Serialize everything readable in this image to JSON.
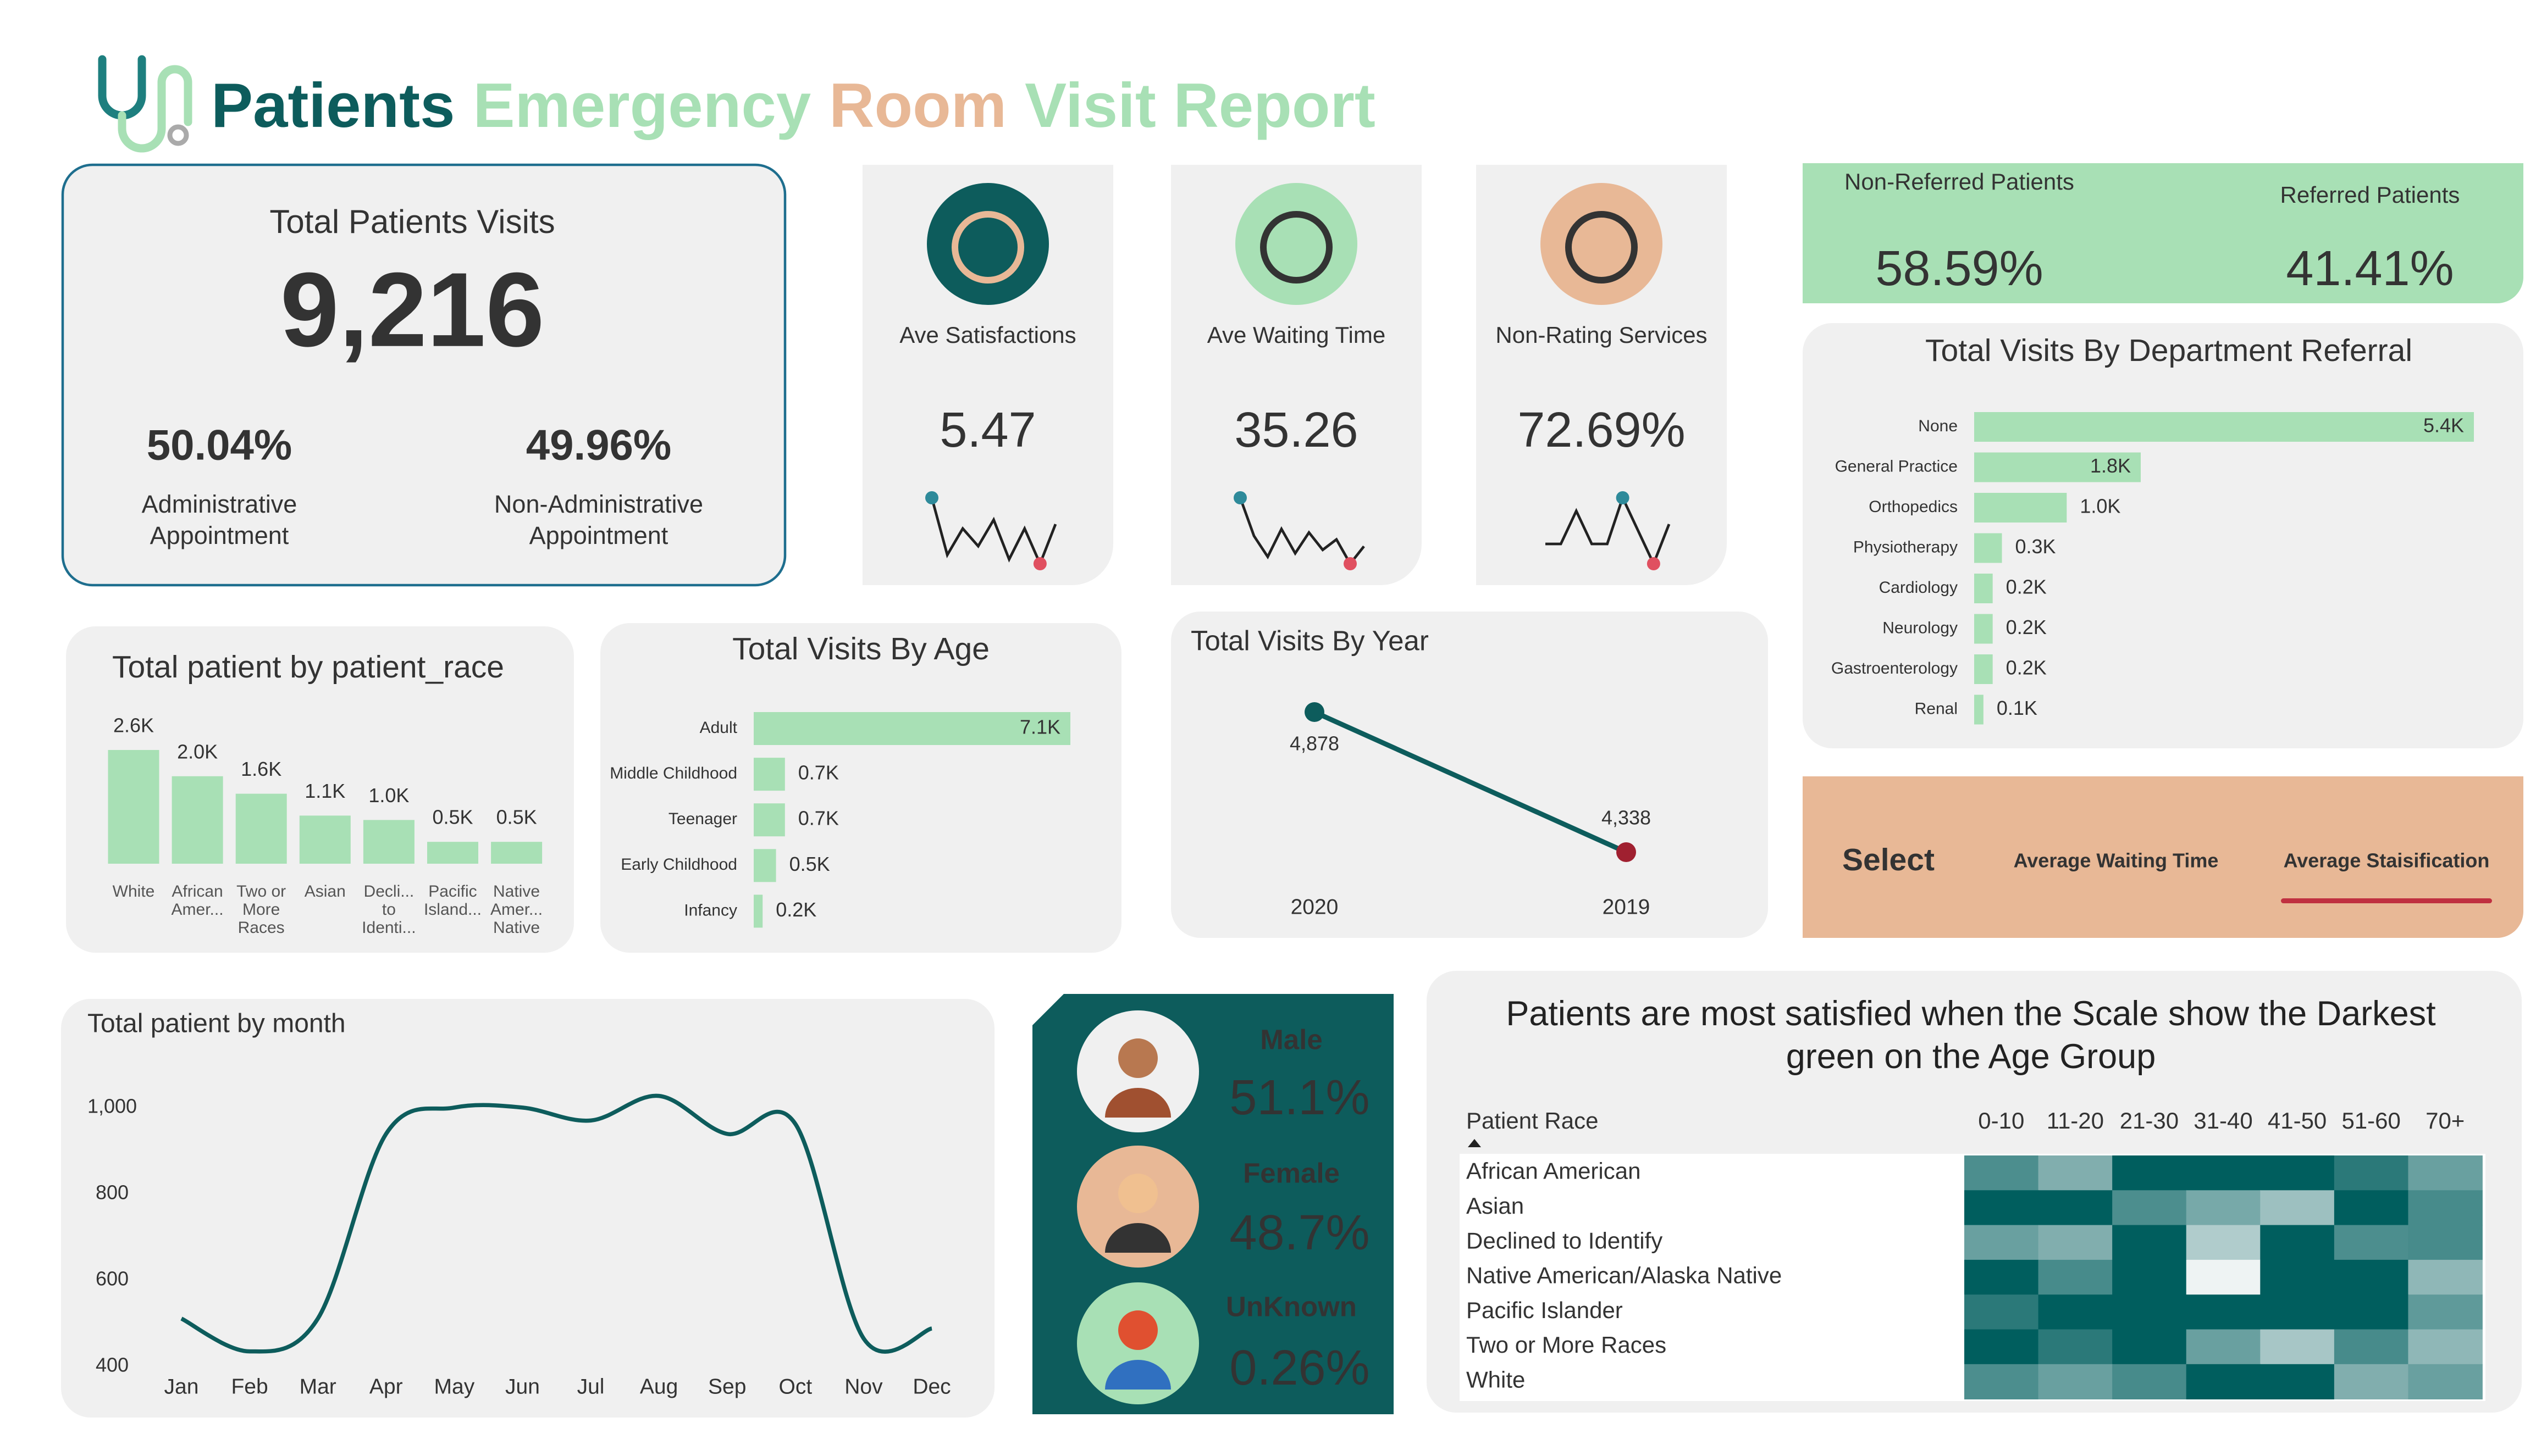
{
  "header": {
    "title_parts": [
      "Patients",
      "Emergency",
      "Room",
      "Visit Report"
    ]
  },
  "kpis": {
    "total_visits": {
      "name": "Total Patients Visits",
      "value": "9,216"
    },
    "appointments": [
      {
        "name": "Administrative Appointment",
        "value": "50.04%",
        "color": "#a8e0b5"
      },
      {
        "name": "Non-Administrative Appointment",
        "value": "49.96%",
        "color": "#e8b896"
      }
    ],
    "cards": [
      {
        "name": "Ave Satisfactions",
        "value": "5.47",
        "icon_color": "#0d5c5c",
        "trend": [
          6.0,
          4.7,
          5.3,
          4.9,
          5.5,
          4.6,
          5.3,
          4.5,
          5.4
        ]
      },
      {
        "name": "Ave Waiting Time",
        "value": "35.26",
        "icon_color": "#a8e0b5",
        "trend": [
          36.5,
          35.4,
          34.8,
          35.6,
          34.9,
          35.5,
          35.0,
          35.3,
          34.6,
          35.1
        ]
      },
      {
        "name": "Non-Rating Services",
        "value": "72.69%",
        "icon_color": "#e8b896",
        "trend": [
          72.0,
          72.0,
          74.5,
          72.0,
          72.0,
          75.5,
          73.0,
          70.5,
          73.5
        ]
      }
    ],
    "referral": [
      {
        "name": "Non-Referred Patients",
        "value": "58.59%"
      },
      {
        "name": "Referred Patients",
        "value": "41.41%"
      }
    ],
    "gender": [
      {
        "name": "Male",
        "value": "51.1%"
      },
      {
        "name": "Female",
        "value": "48.7%"
      },
      {
        "name": "UnKnown",
        "value": "0.26%"
      }
    ]
  },
  "select": {
    "name": "Select",
    "options": [
      "Average Waiting Time",
      "Average Staisification"
    ]
  },
  "chart_data": [
    {
      "type": "bar",
      "title": "Total patient by patient_race",
      "color": "#a8e0b5",
      "categories": [
        "White",
        "African Amer...",
        "Two or More Races",
        "Asian",
        "Decli... to Identi...",
        "Pacific Island...",
        "Native Amer... Native"
      ],
      "values": [
        2600,
        2000,
        1600,
        1100,
        1000,
        500,
        500
      ],
      "value_labels": [
        "2.6K",
        "2.0K",
        "1.6K",
        "1.1K",
        "1.0K",
        "0.5K",
        "0.5K"
      ]
    },
    {
      "type": "hbar",
      "title": "Total Visits By Age",
      "color": "#a8e0b5",
      "categories": [
        "Adult",
        "Middle Childhood",
        "Teenager",
        "Early Childhood",
        "Infancy"
      ],
      "values": [
        7100,
        700,
        700,
        500,
        200
      ],
      "value_labels": [
        "7.1K",
        "0.7K",
        "0.7K",
        "0.5K",
        "0.2K"
      ]
    },
    {
      "type": "line",
      "title": "Total Visits By Year",
      "color": "#0d5c5c",
      "categories": [
        "2020",
        "2019"
      ],
      "values": [
        4878,
        4338
      ],
      "value_labels": [
        "4,878",
        "4,338"
      ]
    },
    {
      "type": "curve",
      "title": "Total patient by month",
      "color": "#0d5c5c",
      "categories": [
        "Jan",
        "Feb",
        "Mar",
        "Apr",
        "May",
        "Jun",
        "Jul",
        "Aug",
        "Sep",
        "Oct",
        "Nov",
        "Dec"
      ],
      "values": [
        511,
        435,
        511,
        939,
        1000,
        1000,
        970,
        1027,
        939,
        962,
        465,
        488
      ],
      "ylim": [
        360,
        1080
      ],
      "yticks": [
        400,
        600,
        800,
        {
          "value": 1000,
          "label": "1,000"
        }
      ]
    },
    {
      "type": "hbar",
      "title": "Total Visits By Department Referral",
      "color": "#a8e0b5",
      "categories": [
        "None",
        "General Practice",
        "Orthopedics",
        "Physiotherapy",
        "Cardiology",
        "Neurology",
        "Gastroenterology",
        "Renal"
      ],
      "values": [
        5400,
        1800,
        1000,
        300,
        200,
        200,
        200,
        100
      ],
      "value_labels": [
        "5.4K",
        "1.8K",
        "1.0K",
        "0.3K",
        "0.2K",
        "0.2K",
        "0.2K",
        "0.1K"
      ]
    },
    {
      "type": "heatmap",
      "title": "Patients are most satisfied when the Scale show the Darkest green on the Age Group",
      "row_header": "Patient Race",
      "x": [
        "0-10",
        "11-20",
        "21-30",
        "31-40",
        "41-50",
        "51-60",
        "70+"
      ],
      "categories": [
        "African American",
        "Asian",
        "Declined to Identify",
        "Native American/Alaska Native",
        "Pacific Islander",
        "Two or More Races",
        "White"
      ],
      "values": [
        [
          4.9,
          3.8,
          6.5,
          6.5,
          6.5,
          5.6,
          4.3
        ],
        [
          6.5,
          6.5,
          4.9,
          4.0,
          3.2,
          6.5,
          5.0
        ],
        [
          4.3,
          3.8,
          6.5,
          2.8,
          6.5,
          4.9,
          5.0
        ],
        [
          6.5,
          5.0,
          6.5,
          1.5,
          6.5,
          6.5,
          3.5
        ],
        [
          5.6,
          6.5,
          6.5,
          6.5,
          6.5,
          6.5,
          4.5
        ],
        [
          6.5,
          5.6,
          6.5,
          4.3,
          3.0,
          5.0,
          3.5
        ],
        [
          4.9,
          4.3,
          5.0,
          6.5,
          6.5,
          3.8,
          4.3
        ]
      ],
      "colors": [
        "#eef3f3",
        "#005e5e"
      ]
    }
  ]
}
